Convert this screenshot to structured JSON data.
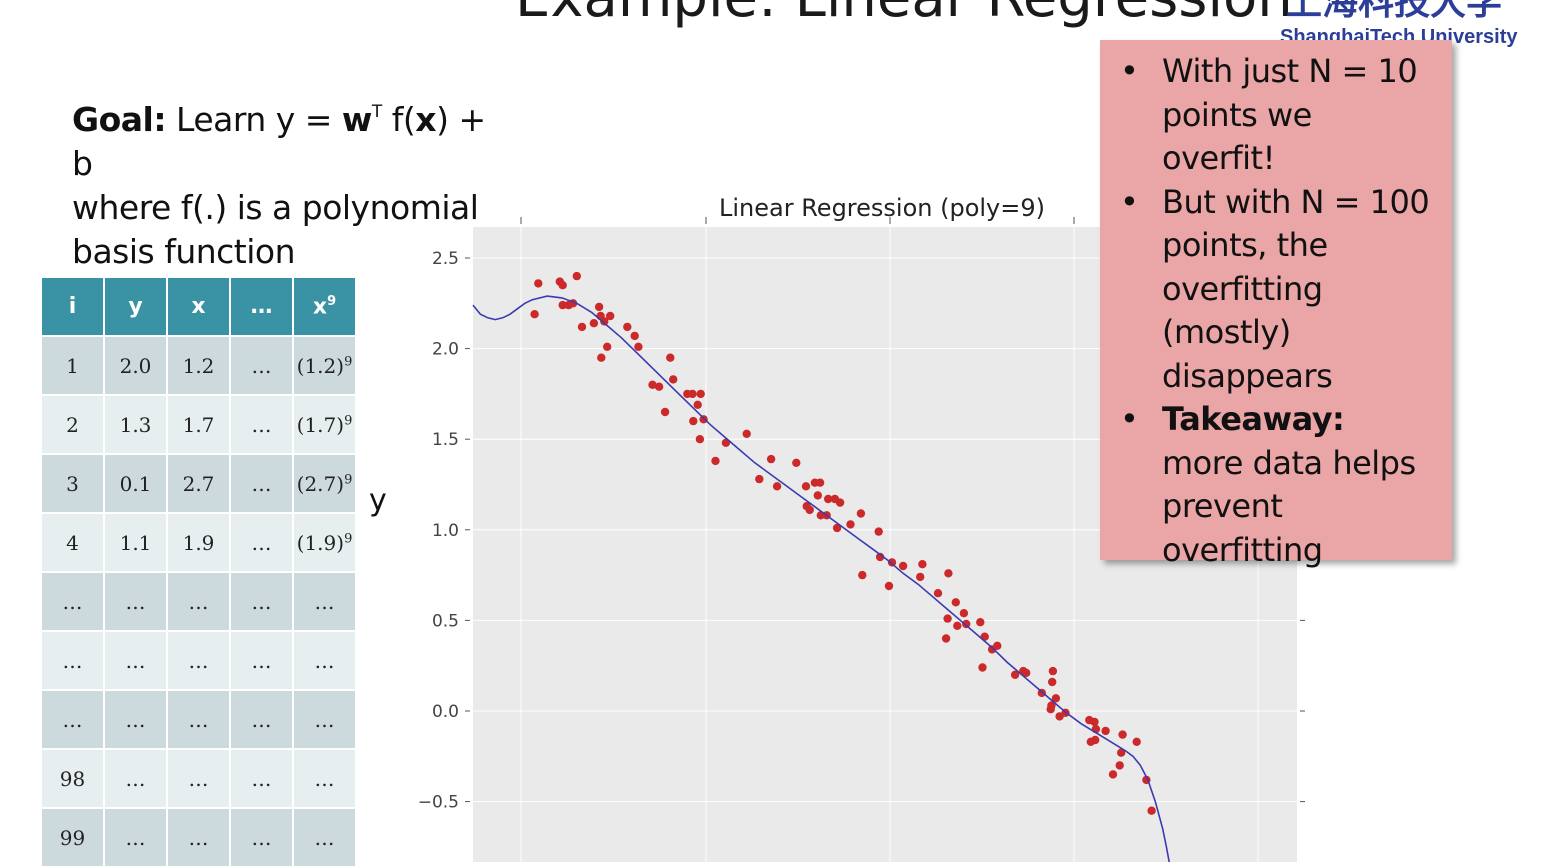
{
  "slide": {
    "title": "Example: Linear Regression",
    "logo_cn": "上海科技大学",
    "logo_en": "ShanghaiTech University"
  },
  "goal": {
    "label": "Goal:",
    "formula_prefix": " Learn y = ",
    "w": "w",
    "transpose": "T",
    "f_open": " f(",
    "x": "x",
    "f_close": ") + b",
    "line2": "where f(.) is a polynomial",
    "line3": "basis function"
  },
  "table": {
    "headers": [
      "i",
      "y",
      "x",
      "…",
      "x"
    ],
    "header_sup": "9",
    "rows": [
      {
        "i": "1",
        "y": "2.0",
        "x": "1.2",
        "dots": "…",
        "pow": "(1.2)",
        "sup": "9"
      },
      {
        "i": "2",
        "y": "1.3",
        "x": "1.7",
        "dots": "…",
        "pow": "(1.7)",
        "sup": "9"
      },
      {
        "i": "3",
        "y": "0.1",
        "x": "2.7",
        "dots": "…",
        "pow": "(2.7)",
        "sup": "9"
      },
      {
        "i": "4",
        "y": "1.1",
        "x": "1.9",
        "dots": "…",
        "pow": "(1.9)",
        "sup": "9"
      },
      {
        "i": "…",
        "y": "…",
        "x": "…",
        "dots": "…",
        "pow": "…",
        "sup": ""
      },
      {
        "i": "…",
        "y": "…",
        "x": "…",
        "dots": "…",
        "pow": "…",
        "sup": ""
      },
      {
        "i": "…",
        "y": "…",
        "x": "…",
        "dots": "…",
        "pow": "…",
        "sup": ""
      },
      {
        "i": "98",
        "y": "…",
        "x": "…",
        "dots": "…",
        "pow": "…",
        "sup": ""
      },
      {
        "i": "99",
        "y": "…",
        "x": "…",
        "dots": "…",
        "pow": "…",
        "sup": ""
      }
    ]
  },
  "y_label": "y",
  "chart_data": {
    "type": "scatter",
    "title": "Linear Regression (poly=9)",
    "ylabel": "",
    "xlabel": "",
    "ylim": [
      -0.83,
      2.67
    ],
    "xlim": [
      0,
      1
    ],
    "yticks": [
      2.5,
      2.0,
      1.5,
      1.0,
      0.5,
      0.0,
      -0.5
    ],
    "ytick_labels": [
      "2.5",
      "2.0",
      "1.5",
      "1.0",
      "0.5",
      "0.0",
      "−0.5"
    ],
    "grid": true,
    "colors": {
      "points": "#cc2a2a",
      "line": "#3b3bb0",
      "background": "#eaeaea"
    },
    "points": [
      [
        0.083,
        2.19
      ],
      [
        0.088,
        2.36
      ],
      [
        0.117,
        2.37
      ],
      [
        0.121,
        2.35
      ],
      [
        0.121,
        2.24
      ],
      [
        0.129,
        2.24
      ],
      [
        0.135,
        2.25
      ],
      [
        0.14,
        2.4
      ],
      [
        0.147,
        2.12
      ],
      [
        0.163,
        2.14
      ],
      [
        0.17,
        2.23
      ],
      [
        0.172,
        2.18
      ],
      [
        0.173,
        1.95
      ],
      [
        0.177,
        2.15
      ],
      [
        0.181,
        2.01
      ],
      [
        0.185,
        2.18
      ],
      [
        0.208,
        2.12
      ],
      [
        0.218,
        2.07
      ],
      [
        0.223,
        2.01
      ],
      [
        0.242,
        1.8
      ],
      [
        0.251,
        1.79
      ],
      [
        0.259,
        1.65
      ],
      [
        0.266,
        1.95
      ],
      [
        0.27,
        1.83
      ],
      [
        0.289,
        1.75
      ],
      [
        0.296,
        1.75
      ],
      [
        0.297,
        1.6
      ],
      [
        0.303,
        1.69
      ],
      [
        0.306,
        1.5
      ],
      [
        0.307,
        1.75
      ],
      [
        0.311,
        1.61
      ],
      [
        0.327,
        1.38
      ],
      [
        0.341,
        1.48
      ],
      [
        0.369,
        1.53
      ],
      [
        0.386,
        1.28
      ],
      [
        0.402,
        1.39
      ],
      [
        0.41,
        1.24
      ],
      [
        0.436,
        1.37
      ],
      [
        0.449,
        1.24
      ],
      [
        0.45,
        1.13
      ],
      [
        0.454,
        1.11
      ],
      [
        0.461,
        1.26
      ],
      [
        0.465,
        1.19
      ],
      [
        0.468,
        1.26
      ],
      [
        0.469,
        1.08
      ],
      [
        0.477,
        1.08
      ],
      [
        0.479,
        1.17
      ],
      [
        0.488,
        1.17
      ],
      [
        0.491,
        1.01
      ],
      [
        0.495,
        1.15
      ],
      [
        0.509,
        1.03
      ],
      [
        0.523,
        1.09
      ],
      [
        0.525,
        0.75
      ],
      [
        0.547,
        0.99
      ],
      [
        0.549,
        0.85
      ],
      [
        0.561,
        0.69
      ],
      [
        0.565,
        0.82
      ],
      [
        0.58,
        0.8
      ],
      [
        0.603,
        0.74
      ],
      [
        0.606,
        0.81
      ],
      [
        0.627,
        0.65
      ],
      [
        0.638,
        0.4
      ],
      [
        0.64,
        0.51
      ],
      [
        0.641,
        0.76
      ],
      [
        0.651,
        0.6
      ],
      [
        0.653,
        0.47
      ],
      [
        0.662,
        0.54
      ],
      [
        0.665,
        0.48
      ],
      [
        0.684,
        0.49
      ],
      [
        0.687,
        0.24
      ],
      [
        0.69,
        0.41
      ],
      [
        0.7,
        0.34
      ],
      [
        0.707,
        0.36
      ],
      [
        0.731,
        0.2
      ],
      [
        0.742,
        0.22
      ],
      [
        0.746,
        0.21
      ],
      [
        0.767,
        0.1
      ],
      [
        0.779,
        0.01
      ],
      [
        0.78,
        0.03
      ],
      [
        0.781,
        0.16
      ],
      [
        0.782,
        0.22
      ],
      [
        0.786,
        0.07
      ],
      [
        0.791,
        -0.03
      ],
      [
        0.799,
        -0.01
      ],
      [
        0.831,
        -0.05
      ],
      [
        0.833,
        -0.17
      ],
      [
        0.838,
        -0.06
      ],
      [
        0.839,
        -0.16
      ],
      [
        0.84,
        -0.1
      ],
      [
        0.853,
        -0.11
      ],
      [
        0.863,
        -0.35
      ],
      [
        0.872,
        -0.3
      ],
      [
        0.874,
        -0.23
      ],
      [
        0.876,
        -0.13
      ],
      [
        0.895,
        -0.17
      ],
      [
        0.908,
        -0.38
      ],
      [
        0.915,
        -0.55
      ]
    ],
    "fit_curve": [
      [
        0.0,
        2.24
      ],
      [
        0.01,
        2.19
      ],
      [
        0.02,
        2.17
      ],
      [
        0.03,
        2.16
      ],
      [
        0.04,
        2.17
      ],
      [
        0.05,
        2.19
      ],
      [
        0.06,
        2.22
      ],
      [
        0.07,
        2.25
      ],
      [
        0.08,
        2.27
      ],
      [
        0.1,
        2.29
      ],
      [
        0.12,
        2.28
      ],
      [
        0.14,
        2.25
      ],
      [
        0.16,
        2.2
      ],
      [
        0.18,
        2.13
      ],
      [
        0.2,
        2.06
      ],
      [
        0.22,
        1.98
      ],
      [
        0.24,
        1.9
      ],
      [
        0.26,
        1.82
      ],
      [
        0.28,
        1.74
      ],
      [
        0.3,
        1.66
      ],
      [
        0.32,
        1.58
      ],
      [
        0.34,
        1.51
      ],
      [
        0.36,
        1.44
      ],
      [
        0.38,
        1.37
      ],
      [
        0.4,
        1.31
      ],
      [
        0.42,
        1.25
      ],
      [
        0.44,
        1.19
      ],
      [
        0.46,
        1.13
      ],
      [
        0.48,
        1.07
      ],
      [
        0.5,
        1.01
      ],
      [
        0.52,
        0.95
      ],
      [
        0.54,
        0.89
      ],
      [
        0.56,
        0.83
      ],
      [
        0.58,
        0.76
      ],
      [
        0.6,
        0.7
      ],
      [
        0.62,
        0.63
      ],
      [
        0.64,
        0.56
      ],
      [
        0.66,
        0.49
      ],
      [
        0.68,
        0.42
      ],
      [
        0.7,
        0.35
      ],
      [
        0.72,
        0.27
      ],
      [
        0.74,
        0.2
      ],
      [
        0.76,
        0.13
      ],
      [
        0.78,
        0.06
      ],
      [
        0.8,
        -0.01
      ],
      [
        0.82,
        -0.07
      ],
      [
        0.84,
        -0.12
      ],
      [
        0.86,
        -0.17
      ],
      [
        0.88,
        -0.22
      ],
      [
        0.89,
        -0.25
      ],
      [
        0.9,
        -0.3
      ],
      [
        0.91,
        -0.38
      ],
      [
        0.92,
        -0.5
      ],
      [
        0.93,
        -0.65
      ],
      [
        0.935,
        -0.75
      ],
      [
        0.94,
        -0.86
      ]
    ]
  },
  "callout": {
    "bullets": [
      {
        "bold": "",
        "text": "With just N = 10 points we overfit!"
      },
      {
        "bold": "",
        "text": "But with N = 100 points, the overfitting (mostly) disappears"
      },
      {
        "bold": "Takeaway:",
        "text": " more data helps prevent overfitting"
      }
    ],
    "bullet_char": "•"
  }
}
